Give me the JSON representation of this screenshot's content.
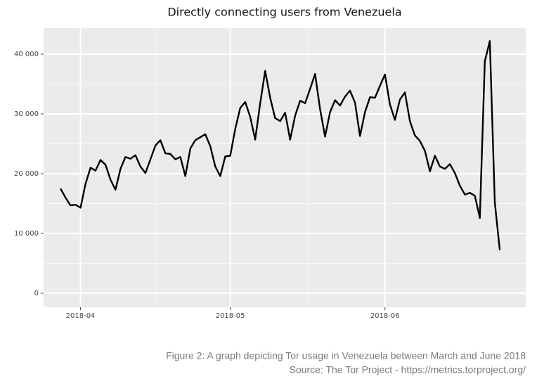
{
  "chart_data": {
    "type": "line",
    "title": "Directly connecting users from Venezuela",
    "series": [
      {
        "color": "#000000",
        "values": [
          17500,
          16000,
          14700,
          14800,
          14300,
          18300,
          21000,
          20500,
          22300,
          21500,
          19000,
          17300,
          20800,
          22800,
          22500,
          23100,
          21200,
          20100,
          22400,
          24700,
          25600,
          23400,
          23300,
          22400,
          22800,
          19600,
          24200,
          25600,
          26100,
          26600,
          24600,
          21200,
          19600,
          22900,
          23000,
          27500,
          31000,
          32000,
          29500,
          25700,
          31800,
          37200,
          32700,
          29300,
          28800,
          30200,
          25700,
          29700,
          32200,
          31800,
          34200,
          36700,
          30800,
          26200,
          30300,
          32300,
          31400,
          32900,
          33900,
          31900,
          26300,
          30300,
          32800,
          32700,
          34700,
          36600,
          31600,
          29000,
          32400,
          33600,
          28800,
          26400,
          25500,
          23800,
          20400,
          23000,
          21200,
          20800,
          21600,
          20100,
          18000,
          16500,
          16800,
          16300,
          12600,
          38800,
          42200,
          15200,
          7200
        ]
      }
    ],
    "xlim": [
      -3.4,
      93.2
    ],
    "xticks": [
      {
        "value": 4,
        "label": "2018-04"
      },
      {
        "value": 34,
        "label": "2018-05"
      },
      {
        "value": 65,
        "label": "2018-06"
      }
    ],
    "ylim": [
      -2353,
      44353
    ],
    "yticks": [
      0,
      {
        "value": 10000,
        "label": "10 000"
      },
      {
        "value": 20000,
        "label": "20 000"
      },
      {
        "value": 30000,
        "label": "30 000"
      },
      {
        "value": 40000,
        "label": "40 000"
      }
    ],
    "grid": true
  },
  "caption": [
    "Figure 2: A graph depicting Tor usage in Venezuela between March and June 2018",
    "Source: The Tor Project - https://metrics.torproject.org/"
  ]
}
